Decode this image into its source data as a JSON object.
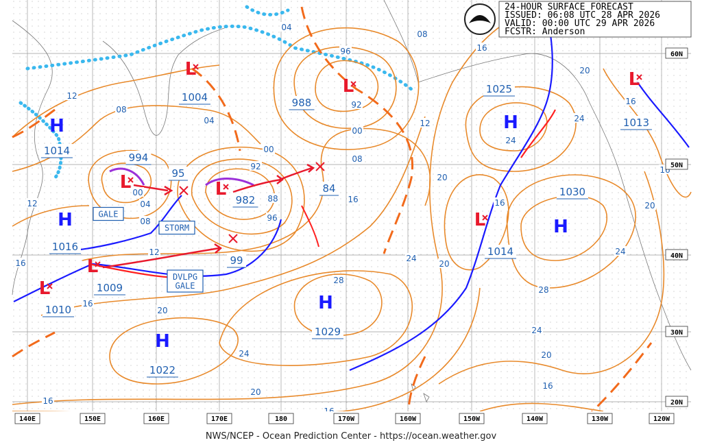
{
  "header": {
    "lines": [
      "24-HOUR SURFACE FORECAST",
      "ISSUED: 06:08 UTC 28 APR 2026",
      "VALID:  00:00 UTC 29 APR 2026",
      "FCSTR:  Anderson"
    ]
  },
  "longitudes": [
    "140E",
    "150E",
    "160E",
    "170E",
    "180",
    "170W",
    "160W",
    "150W",
    "140W",
    "130W",
    "120W"
  ],
  "latitudes": [
    "60N",
    "50N",
    "40N",
    "30N",
    "20N"
  ],
  "centers": [
    {
      "symbol": "H",
      "pressure": "1014"
    },
    {
      "symbol": "H",
      "pressure": "1016"
    },
    {
      "symbol": "L",
      "pressure": "1010"
    },
    {
      "symbol": "L",
      "pressure": "1009"
    },
    {
      "symbol": "H",
      "pressure": "1022"
    },
    {
      "symbol": "L",
      "pressure": "1004"
    },
    {
      "symbol": "L",
      "pressure": "994"
    },
    {
      "pressure": "95"
    },
    {
      "symbol": "L",
      "pressure": "982"
    },
    {
      "pressure": "99"
    },
    {
      "symbol": "L",
      "pressure": "988"
    },
    {
      "pressure": "84"
    },
    {
      "symbol": "H",
      "pressure": "1029"
    },
    {
      "symbol": "H",
      "pressure": "1025"
    },
    {
      "symbol": "L",
      "pressure": "1014"
    },
    {
      "symbol": "H",
      "pressure": "1030"
    },
    {
      "symbol": "L",
      "pressure": "1013"
    }
  ],
  "isobar_labels": [
    "12",
    "08",
    "12",
    "16",
    "04",
    "08",
    "00",
    "12",
    "16",
    "20",
    "04",
    "00",
    "92",
    "88",
    "96",
    "04",
    "96",
    "92",
    "00",
    "08",
    "16",
    "12",
    "08",
    "16",
    "20",
    "24",
    "28",
    "24",
    "20",
    "16",
    "16",
    "20",
    "16",
    "24",
    "20",
    "24",
    "16",
    "20",
    "24",
    "28",
    "24",
    "20",
    "16",
    "12",
    "12",
    "16"
  ],
  "warnings": [
    [
      "GALE"
    ],
    [
      "STORM"
    ],
    [
      "DVLPG",
      "GALE"
    ]
  ],
  "footer": "NWS/NCEP - Ocean Prediction Center - https://ocean.weather.gov"
}
